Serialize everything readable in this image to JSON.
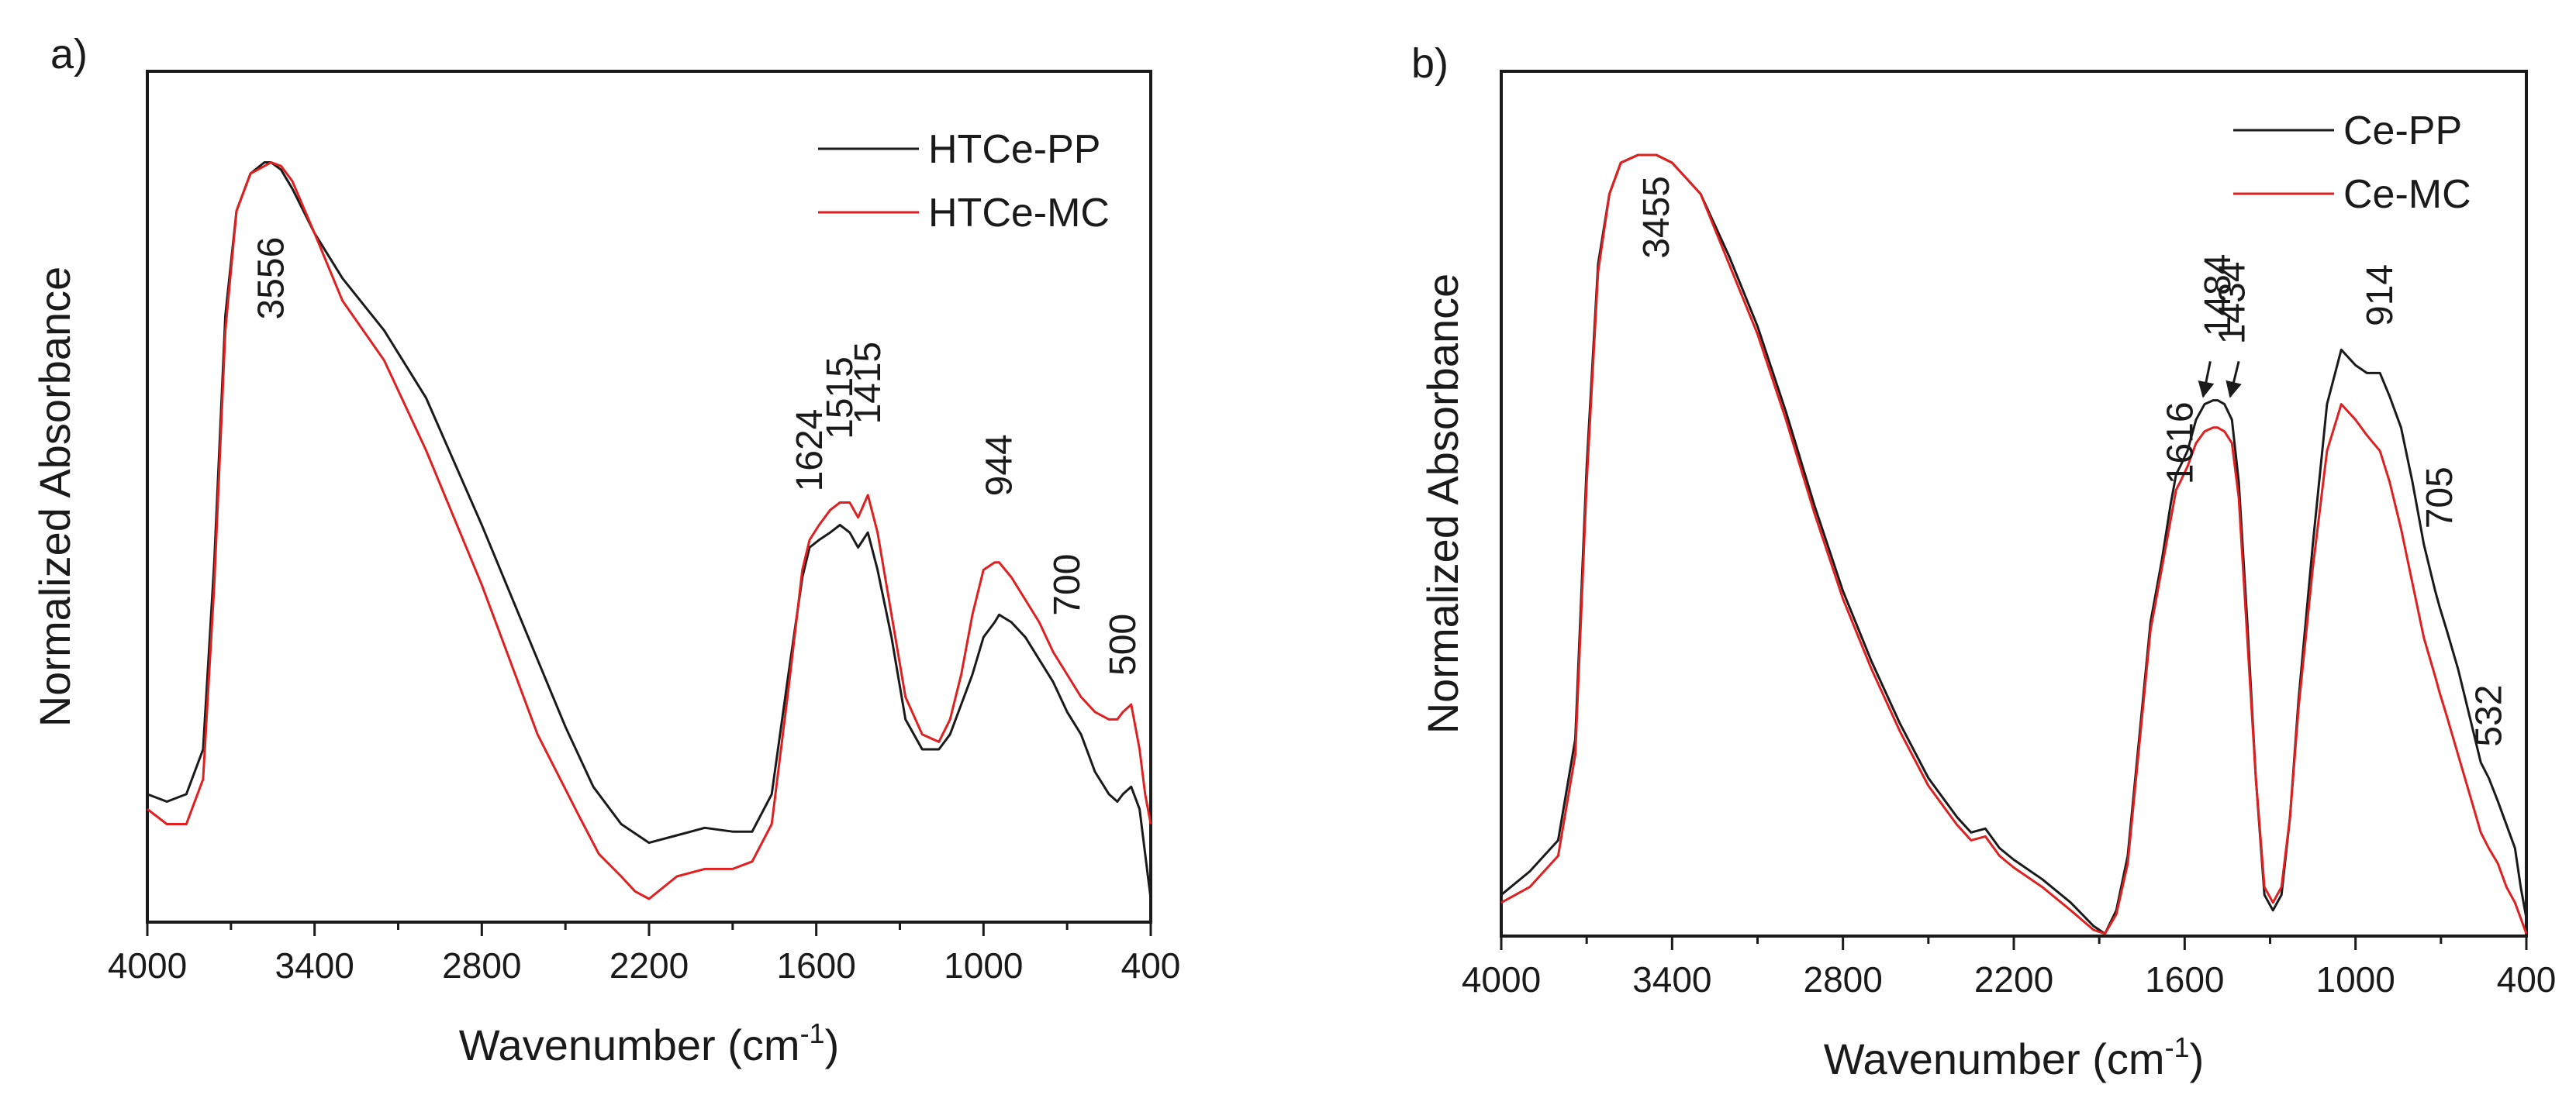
{
  "chart_data": [
    {
      "panel": "a)",
      "type": "line",
      "xlabel": "Wavenumber (cm",
      "xlabel_sup": "-1",
      "xlabel_end": ")",
      "ylabel": "Normalized Absorbance",
      "xlim": [
        4000,
        400
      ],
      "ylim": [
        0,
        1
      ],
      "xticks": [
        4000,
        3400,
        2800,
        2200,
        1600,
        1000,
        400
      ],
      "legend_position": "top-right",
      "colors": {
        "HTCe-PP": "#1a1a1a",
        "HTCe-MC": "#e02020"
      },
      "series": [
        {
          "name": "HTCe-PP",
          "color": "#1a1a1a",
          "x": [
            4000,
            3930,
            3860,
            3800,
            3760,
            3720,
            3680,
            3630,
            3580,
            3556,
            3520,
            3480,
            3400,
            3300,
            3150,
            3000,
            2800,
            2600,
            2500,
            2400,
            2300,
            2200,
            2100,
            2000,
            1900,
            1830,
            1760,
            1700,
            1650,
            1624,
            1590,
            1550,
            1515,
            1480,
            1450,
            1415,
            1380,
            1330,
            1280,
            1220,
            1160,
            1120,
            1080,
            1040,
            1000,
            960,
            944,
            900,
            850,
            800,
            750,
            700,
            650,
            600,
            550,
            520,
            500,
            470,
            440,
            420,
            400
          ],
          "y": [
            0.14,
            0.13,
            0.14,
            0.2,
            0.45,
            0.78,
            0.92,
            0.97,
            0.985,
            0.985,
            0.975,
            0.95,
            0.89,
            0.83,
            0.76,
            0.67,
            0.5,
            0.32,
            0.23,
            0.15,
            0.1,
            0.075,
            0.085,
            0.095,
            0.09,
            0.09,
            0.14,
            0.3,
            0.43,
            0.47,
            0.48,
            0.49,
            0.5,
            0.49,
            0.47,
            0.49,
            0.44,
            0.35,
            0.24,
            0.2,
            0.2,
            0.22,
            0.26,
            0.3,
            0.35,
            0.37,
            0.38,
            0.37,
            0.35,
            0.32,
            0.29,
            0.25,
            0.22,
            0.17,
            0.14,
            0.13,
            0.14,
            0.15,
            0.12,
            0.06,
            0.0
          ]
        },
        {
          "name": "HTCe-MC",
          "color": "#e02020",
          "x": [
            4000,
            3930,
            3860,
            3800,
            3760,
            3720,
            3680,
            3630,
            3580,
            3556,
            3520,
            3480,
            3400,
            3300,
            3150,
            3000,
            2800,
            2600,
            2450,
            2380,
            2300,
            2250,
            2200,
            2100,
            2000,
            1900,
            1830,
            1760,
            1700,
            1650,
            1624,
            1590,
            1550,
            1515,
            1480,
            1450,
            1415,
            1380,
            1330,
            1280,
            1220,
            1160,
            1120,
            1080,
            1040,
            1000,
            960,
            944,
            900,
            850,
            800,
            750,
            700,
            650,
            600,
            550,
            520,
            500,
            470,
            440,
            420,
            400
          ],
          "y": [
            0.12,
            0.1,
            0.1,
            0.16,
            0.42,
            0.76,
            0.92,
            0.97,
            0.98,
            0.985,
            0.98,
            0.96,
            0.89,
            0.8,
            0.72,
            0.6,
            0.42,
            0.22,
            0.11,
            0.06,
            0.03,
            0.01,
            0.0,
            0.03,
            0.04,
            0.04,
            0.05,
            0.1,
            0.28,
            0.44,
            0.48,
            0.5,
            0.52,
            0.53,
            0.53,
            0.51,
            0.54,
            0.49,
            0.38,
            0.27,
            0.22,
            0.21,
            0.24,
            0.3,
            0.38,
            0.44,
            0.45,
            0.45,
            0.43,
            0.4,
            0.37,
            0.33,
            0.3,
            0.27,
            0.25,
            0.24,
            0.24,
            0.25,
            0.26,
            0.2,
            0.14,
            0.1
          ]
        }
      ],
      "annotations": [
        {
          "text": "3556",
          "x": 3556,
          "y": 0.83
        },
        {
          "text": "1624",
          "x": 1624,
          "y": 0.6
        },
        {
          "text": "1515",
          "x": 1515,
          "y": 0.67
        },
        {
          "text": "1415",
          "x": 1415,
          "y": 0.69
        },
        {
          "text": "944",
          "x": 944,
          "y": 0.58
        },
        {
          "text": "700",
          "x": 700,
          "y": 0.42
        },
        {
          "text": "500",
          "x": 500,
          "y": 0.34
        }
      ]
    },
    {
      "panel": "b)",
      "type": "line",
      "xlabel": "Wavenumber (cm",
      "xlabel_sup": "-1",
      "xlabel_end": ")",
      "ylabel": "Normalized Absorbance",
      "xlim": [
        4000,
        400
      ],
      "ylim": [
        0,
        1
      ],
      "xticks": [
        4000,
        3400,
        2800,
        2200,
        1600,
        1000,
        400
      ],
      "legend_position": "top-right",
      "colors": {
        "Ce-PP": "#1a1a1a",
        "Ce-MC": "#e02020"
      },
      "series": [
        {
          "name": "Ce-PP",
          "color": "#1a1a1a",
          "x": [
            4000,
            3900,
            3800,
            3740,
            3700,
            3660,
            3620,
            3580,
            3520,
            3455,
            3400,
            3300,
            3200,
            3100,
            3000,
            2900,
            2800,
            2700,
            2600,
            2500,
            2400,
            2350,
            2300,
            2250,
            2200,
            2100,
            2000,
            1920,
            1880,
            1840,
            1800,
            1760,
            1720,
            1680,
            1650,
            1630,
            1616,
            1590,
            1560,
            1530,
            1500,
            1484,
            1460,
            1434,
            1410,
            1380,
            1350,
            1320,
            1290,
            1260,
            1230,
            1200,
            1150,
            1100,
            1050,
            1000,
            960,
            914,
            880,
            840,
            800,
            760,
            720,
            705,
            680,
            640,
            600,
            560,
            532,
            500,
            470,
            440,
            420,
            400
          ],
          "y": [
            0.05,
            0.08,
            0.12,
            0.25,
            0.6,
            0.86,
            0.95,
            0.99,
            1.0,
            1.0,
            0.99,
            0.95,
            0.87,
            0.78,
            0.67,
            0.55,
            0.44,
            0.35,
            0.27,
            0.2,
            0.15,
            0.13,
            0.135,
            0.11,
            0.095,
            0.07,
            0.04,
            0.01,
            0.0,
            0.03,
            0.1,
            0.25,
            0.4,
            0.48,
            0.55,
            0.59,
            0.6,
            0.62,
            0.66,
            0.68,
            0.685,
            0.685,
            0.68,
            0.66,
            0.58,
            0.4,
            0.2,
            0.05,
            0.03,
            0.05,
            0.15,
            0.3,
            0.5,
            0.68,
            0.75,
            0.73,
            0.72,
            0.72,
            0.69,
            0.65,
            0.58,
            0.5,
            0.44,
            0.42,
            0.39,
            0.34,
            0.28,
            0.22,
            0.2,
            0.17,
            0.14,
            0.11,
            0.06,
            0.02
          ]
        },
        {
          "name": "Ce-MC",
          "color": "#e02020",
          "x": [
            4000,
            3900,
            3800,
            3740,
            3700,
            3660,
            3620,
            3580,
            3520,
            3455,
            3400,
            3300,
            3200,
            3100,
            3000,
            2900,
            2800,
            2700,
            2600,
            2500,
            2400,
            2350,
            2300,
            2250,
            2200,
            2100,
            2000,
            1920,
            1880,
            1840,
            1800,
            1760,
            1720,
            1680,
            1650,
            1630,
            1616,
            1590,
            1560,
            1530,
            1500,
            1484,
            1460,
            1434,
            1410,
            1380,
            1350,
            1320,
            1290,
            1260,
            1230,
            1200,
            1150,
            1100,
            1050,
            1000,
            960,
            914,
            880,
            840,
            800,
            760,
            720,
            705,
            680,
            640,
            600,
            560,
            532,
            500,
            470,
            440,
            420,
            400
          ],
          "y": [
            0.04,
            0.06,
            0.1,
            0.23,
            0.58,
            0.85,
            0.95,
            0.99,
            1.0,
            1.0,
            0.99,
            0.95,
            0.86,
            0.77,
            0.66,
            0.54,
            0.43,
            0.34,
            0.26,
            0.19,
            0.14,
            0.12,
            0.125,
            0.1,
            0.085,
            0.06,
            0.03,
            0.005,
            0.0,
            0.025,
            0.09,
            0.24,
            0.39,
            0.47,
            0.53,
            0.57,
            0.58,
            0.6,
            0.63,
            0.645,
            0.65,
            0.65,
            0.645,
            0.63,
            0.56,
            0.38,
            0.2,
            0.06,
            0.04,
            0.06,
            0.15,
            0.29,
            0.47,
            0.62,
            0.68,
            0.66,
            0.64,
            0.62,
            0.58,
            0.52,
            0.45,
            0.38,
            0.33,
            0.31,
            0.28,
            0.23,
            0.18,
            0.13,
            0.11,
            0.09,
            0.06,
            0.04,
            0.02,
            0.0
          ]
        }
      ],
      "annotations": [
        {
          "text": "3455",
          "x": 3455,
          "y": 0.92
        },
        {
          "text": "1616",
          "x": 1616,
          "y": 0.63
        },
        {
          "text": "1484",
          "x": 1484,
          "y": 0.82
        },
        {
          "text": "1434",
          "x": 1434,
          "y": 0.81
        },
        {
          "text": "914",
          "x": 914,
          "y": 0.82
        },
        {
          "text": "705",
          "x": 705,
          "y": 0.56
        },
        {
          "text": "532",
          "x": 532,
          "y": 0.28
        }
      ],
      "arrows": [
        {
          "label": "1484",
          "from_x": 1510,
          "from_y": 0.735,
          "to_x": 1535,
          "to_y": 0.69
        },
        {
          "label": "1434",
          "from_x": 1410,
          "from_y": 0.735,
          "to_x": 1440,
          "to_y": 0.69
        }
      ]
    }
  ]
}
